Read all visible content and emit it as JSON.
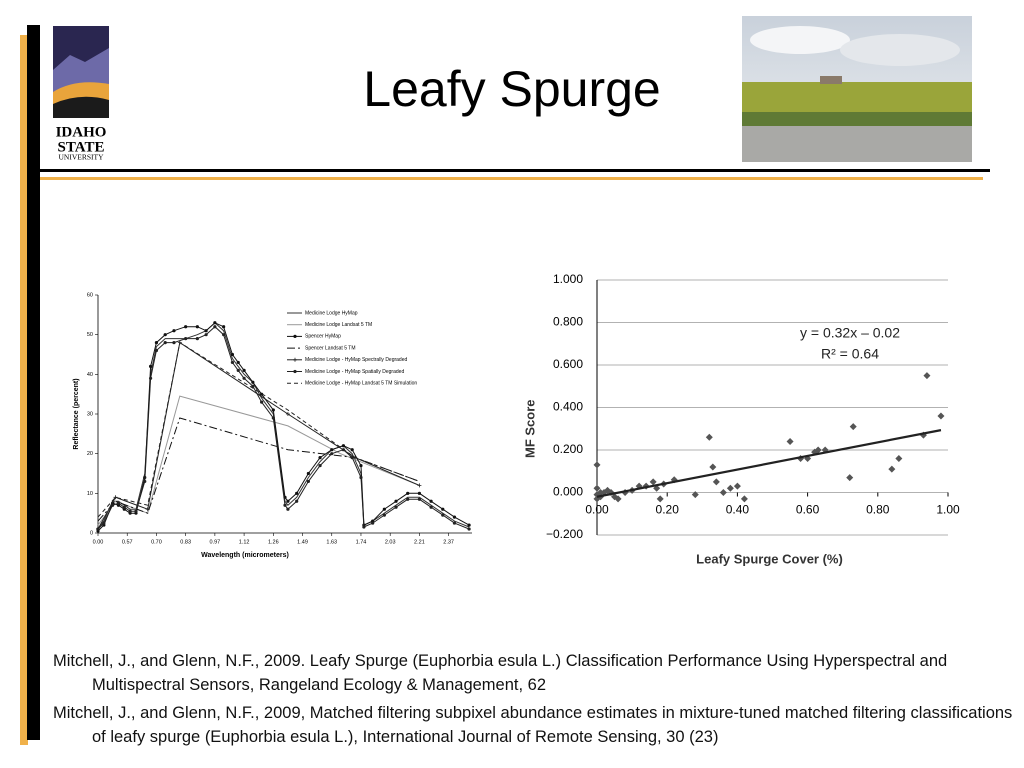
{
  "title": "Leafy Spurge",
  "logo": {
    "line1": "IDAHO",
    "line2": "STATE",
    "line3": "UNIVERSITY"
  },
  "references": [
    "Mitchell, J., and Glenn, N.F., 2009. Leafy Spurge (Euphorbia esula L.) Classification Performance Using Hyperspectral and Multispectral Sensors, Rangeland Ecology & Management, 62",
    "Mitchell, J., and Glenn, N.F., 2009, Matched filtering subpixel abundance estimates in mixture-tuned matched filtering classifications of leafy spurge (Euphorbia esula L.), International Journal of Remote Sensing, 30 (23)"
  ],
  "chart_data": [
    {
      "type": "line",
      "xlabel": "Wavelength (micrometers)",
      "ylabel": "Reflectance (percent)",
      "xlim": [
        0,
        12.8
      ],
      "ylim": [
        0,
        60
      ],
      "xticks": [
        {
          "value": 0,
          "label": "0.00"
        },
        {
          "value": 1,
          "label": "0.57"
        },
        {
          "value": 2,
          "label": "0.70"
        },
        {
          "value": 3,
          "label": "0.83"
        },
        {
          "value": 4,
          "label": "0.97"
        },
        {
          "value": 5,
          "label": "1.12"
        },
        {
          "value": 6,
          "label": "1.26"
        },
        {
          "value": 7,
          "label": "1.49"
        },
        {
          "value": 8,
          "label": "1.63"
        },
        {
          "value": 9,
          "label": "1.74"
        },
        {
          "value": 10,
          "label": "2.03"
        },
        {
          "value": 11,
          "label": "2.21"
        },
        {
          "value": 12,
          "label": "2.37"
        }
      ],
      "yticks": [
        0,
        10,
        20,
        30,
        40,
        50,
        60
      ],
      "legend": "upper right",
      "series": [
        {
          "name": "Medicine Lodge HyMap",
          "color": "#333333",
          "dash": "none",
          "marker": "none",
          "x": [
            0,
            0.2,
            0.5,
            0.7,
            0.9,
            1.1,
            1.3,
            1.6,
            1.8,
            2.0,
            2.3,
            2.6,
            3,
            3.4,
            3.7,
            4,
            4.3,
            4.6,
            4.8,
            5,
            5.3,
            5.6,
            6,
            6.4,
            6.5,
            6.8,
            7.2,
            7.6,
            8,
            8.4,
            8.7,
            9,
            9.1,
            9.4,
            9.8,
            10.2,
            10.6,
            11,
            11.4,
            11.8,
            12.2,
            12.7
          ],
          "values": [
            1,
            3,
            8,
            8,
            7,
            6,
            6,
            15,
            40,
            47,
            49,
            49,
            49,
            50,
            51,
            53,
            51,
            44,
            42,
            40,
            38,
            34,
            30,
            8,
            7,
            9,
            14,
            18,
            21,
            22,
            20,
            15,
            2,
            3,
            5,
            7,
            9,
            9,
            7,
            5,
            3,
            1.5
          ]
        },
        {
          "name": "Medicine Lodge Landsat 5 TM",
          "color": "#999999",
          "dash": "none",
          "marker": "none",
          "x": [
            0,
            0.6,
            1.7,
            2.8,
            6.5,
            8.3,
            11.0
          ],
          "values": [
            2,
            8,
            5,
            34.5,
            27,
            20,
            12
          ]
        },
        {
          "name": "Spencer HyMap",
          "color": "#111111",
          "dash": "none",
          "marker": "dot",
          "x": [
            0,
            0.2,
            0.5,
            0.7,
            0.9,
            1.1,
            1.3,
            1.6,
            1.8,
            2.0,
            2.3,
            2.6,
            3,
            3.4,
            3.7,
            4,
            4.3,
            4.6,
            4.8,
            5,
            5.3,
            5.6,
            6,
            6.4,
            6.5,
            6.8,
            7.2,
            7.6,
            8,
            8.4,
            8.7,
            9,
            9.1,
            9.4,
            9.8,
            10.2,
            10.6,
            11,
            11.4,
            11.8,
            12.2,
            12.7
          ],
          "values": [
            0.5,
            2,
            7.5,
            7,
            6,
            5,
            5,
            14,
            42,
            48,
            50,
            51,
            52,
            52,
            51,
            53,
            52,
            45,
            43,
            41,
            38,
            35,
            31,
            9,
            8,
            10,
            15,
            19,
            21,
            22,
            21,
            17,
            2,
            3,
            6,
            8,
            10,
            10,
            8,
            6,
            4,
            2
          ]
        },
        {
          "name": "Spencer Landsat 5 TM",
          "color": "#111111",
          "dash": "8 3 2 3",
          "marker": "none",
          "x": [
            0,
            0.6,
            1.7,
            2.8,
            6.5,
            8.8,
            11.0
          ],
          "values": [
            3,
            8,
            5,
            29,
            21,
            19,
            13
          ]
        },
        {
          "name": "Medicine Lodge - HyMap Spectrally Degraded",
          "color": "#222222",
          "dash": "none",
          "marker": "plus",
          "x": [
            0,
            0.6,
            1.7,
            2.8,
            6.5,
            8.8,
            11.0
          ],
          "values": [
            1,
            9,
            6,
            48,
            30,
            19,
            12
          ]
        },
        {
          "name": "Medicine Lodge - HyMap Spatially Degraded",
          "color": "#222222",
          "dash": "none",
          "marker": "dot",
          "x": [
            0,
            0.2,
            0.5,
            0.7,
            0.9,
            1.1,
            1.3,
            1.6,
            1.8,
            2.0,
            2.3,
            2.6,
            3,
            3.4,
            3.7,
            4,
            4.3,
            4.6,
            4.8,
            5,
            5.3,
            5.6,
            6,
            6.4,
            6.5,
            6.8,
            7.2,
            7.6,
            8,
            8.4,
            8.7,
            9,
            9.1,
            9.4,
            9.8,
            10.2,
            10.6,
            11,
            11.4,
            11.8,
            12.2,
            12.7
          ],
          "values": [
            1,
            2.5,
            7,
            7.5,
            6.5,
            5.5,
            5.5,
            13,
            39,
            46,
            48,
            48,
            49,
            49,
            50,
            52,
            50,
            43,
            41,
            39,
            37,
            33,
            29,
            7,
            6,
            8,
            13,
            17,
            20,
            21,
            19,
            14,
            1.5,
            2.5,
            4.5,
            6.5,
            8.5,
            8.5,
            6.5,
            4.5,
            2.5,
            1
          ]
        },
        {
          "name": "Medicine Lodge - HyMap Landsat 5 TM Simulation",
          "color": "#222222",
          "dash": "4 3",
          "marker": "none",
          "x": [
            0,
            0.6,
            1.7,
            2.8,
            6.5,
            8.8,
            11.0
          ],
          "values": [
            4,
            9,
            7,
            48,
            31,
            19,
            13
          ]
        }
      ]
    },
    {
      "type": "scatter",
      "xlabel": "Leafy Spurge Cover (%)",
      "ylabel": "MF Score",
      "xlim": [
        0,
        1
      ],
      "ylim": [
        -0.2,
        1.0
      ],
      "xticks": [
        {
          "value": 0,
          "label": "0.00"
        },
        {
          "value": 0.2,
          "label": "0.20"
        },
        {
          "value": 0.4,
          "label": "0.40"
        },
        {
          "value": 0.6,
          "label": "0.60"
        },
        {
          "value": 0.8,
          "label": "0.80"
        },
        {
          "value": 1,
          "label": "1.00"
        }
      ],
      "yticks": [
        {
          "value": -0.2,
          "label": "−0.200"
        },
        {
          "value": 0,
          "label": "0.000"
        },
        {
          "value": 0.2,
          "label": "0.200"
        },
        {
          "value": 0.4,
          "label": "0.400"
        },
        {
          "value": 0.6,
          "label": "0.600"
        },
        {
          "value": 0.8,
          "label": "0.800"
        },
        {
          "value": 1.0,
          "label": "1.000"
        }
      ],
      "grid": true,
      "color": "#555555",
      "x": [
        0,
        0,
        0,
        0,
        0.01,
        0.01,
        0.02,
        0.03,
        0.04,
        0.05,
        0.06,
        0.08,
        0.1,
        0.12,
        0.14,
        0.16,
        0.17,
        0.18,
        0.19,
        0.22,
        0.28,
        0.32,
        0.33,
        0.34,
        0.36,
        0.38,
        0.4,
        0.42,
        0.55,
        0.58,
        0.6,
        0.62,
        0.63,
        0.65,
        0.72,
        0.73,
        0.84,
        0.86,
        0.93,
        0.94,
        0.98
      ],
      "values": [
        0.13,
        0.02,
        -0.01,
        -0.03,
        0.0,
        -0.02,
        0.0,
        0.01,
        0.0,
        -0.02,
        -0.03,
        0.0,
        0.01,
        0.03,
        0.03,
        0.05,
        0.02,
        -0.03,
        0.04,
        0.06,
        -0.01,
        0.26,
        0.12,
        0.05,
        0.0,
        0.02,
        0.03,
        -0.03,
        0.24,
        0.16,
        0.16,
        0.19,
        0.2,
        0.2,
        0.07,
        0.31,
        0.11,
        0.16,
        0.27,
        0.55,
        0.36
      ],
      "trendline": {
        "slope": 0.32,
        "intercept": -0.02,
        "x_range": [
          0,
          0.98
        ]
      },
      "annotations": [
        "y = 0.32x – 0.02",
        "R² = 0.64"
      ]
    }
  ]
}
